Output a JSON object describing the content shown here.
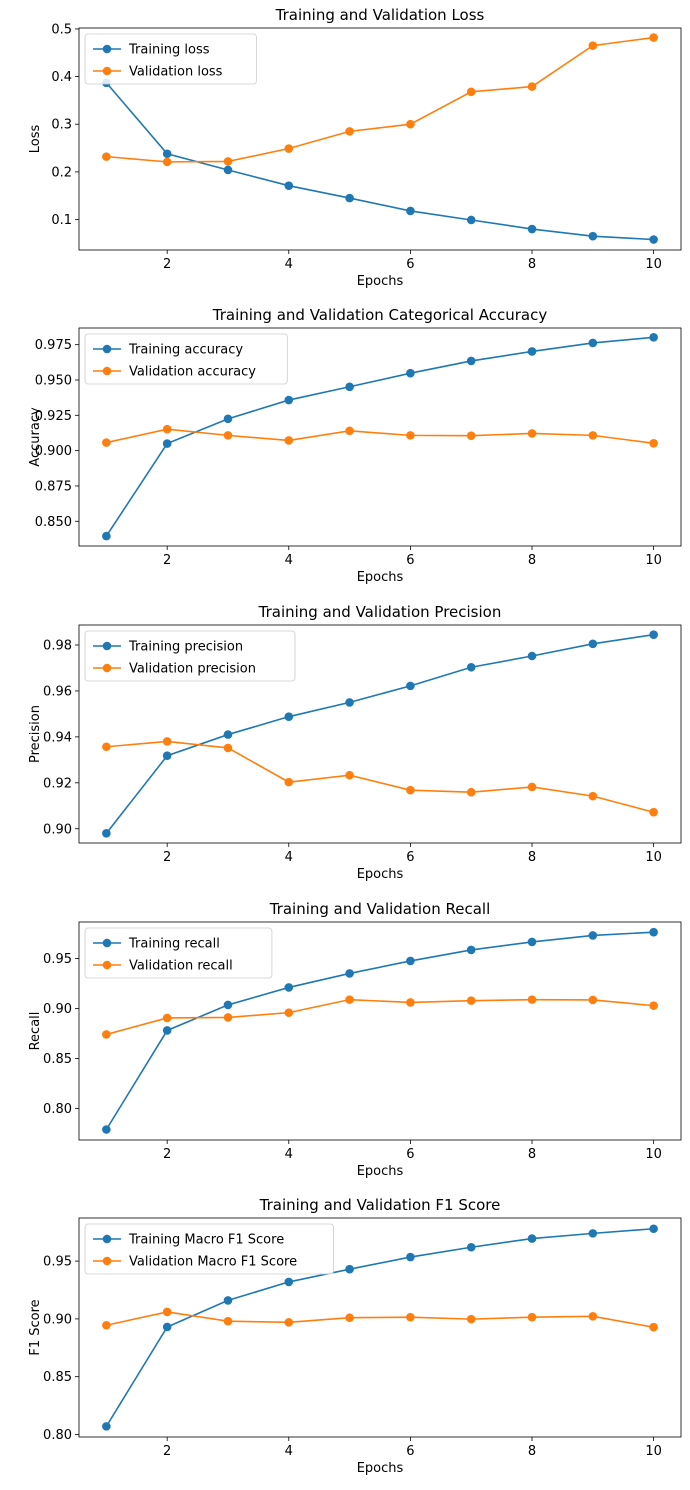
{
  "chart_data": [
    {
      "type": "line",
      "title": "Training and Validation Loss",
      "xlabel": "Epochs",
      "ylabel": "Loss",
      "xlim": [
        0.55,
        10.45
      ],
      "ylim": [
        0.036,
        0.502
      ],
      "xticks": [
        2,
        4,
        6,
        8,
        10
      ],
      "yticks": [
        0.1,
        0.2,
        0.3,
        0.4,
        0.5
      ],
      "ytick_labels": [
        "0.1",
        "0.2",
        "0.3",
        "0.4",
        "0.5"
      ],
      "x": [
        1,
        2,
        3,
        4,
        5,
        6,
        7,
        8,
        9,
        10
      ],
      "legend": "top-left",
      "grid": false,
      "series": [
        {
          "name": "Training loss",
          "color": "#1f77b4",
          "values": [
            0.387,
            0.238,
            0.204,
            0.171,
            0.145,
            0.118,
            0.099,
            0.08,
            0.065,
            0.058
          ]
        },
        {
          "name": "Validation loss",
          "color": "#ff7f0e",
          "values": [
            0.232,
            0.221,
            0.222,
            0.249,
            0.285,
            0.3,
            0.368,
            0.379,
            0.465,
            0.482
          ]
        }
      ]
    },
    {
      "type": "line",
      "title": "Training and Validation Categorical Accuracy",
      "xlabel": "Epochs",
      "ylabel": "Accuracy",
      "xlim": [
        0.55,
        10.45
      ],
      "ylim": [
        0.8325,
        0.9868
      ],
      "xticks": [
        2,
        4,
        6,
        8,
        10
      ],
      "yticks": [
        0.85,
        0.875,
        0.9,
        0.925,
        0.95,
        0.975
      ],
      "ytick_labels": [
        "0.850",
        "0.875",
        "0.900",
        "0.925",
        "0.950",
        "0.975"
      ],
      "x": [
        1,
        2,
        3,
        4,
        5,
        6,
        7,
        8,
        9,
        10
      ],
      "legend": "top-left",
      "grid": false,
      "series": [
        {
          "name": "Training accuracy",
          "color": "#1f77b4",
          "values": [
            0.8395,
            0.905,
            0.9225,
            0.9358,
            0.9452,
            0.9548,
            0.9635,
            0.9702,
            0.9762,
            0.9802
          ]
        },
        {
          "name": "Validation accuracy",
          "color": "#ff7f0e",
          "values": [
            0.9057,
            0.9152,
            0.9108,
            0.9072,
            0.914,
            0.9108,
            0.9106,
            0.9122,
            0.9108,
            0.9052
          ]
        }
      ]
    },
    {
      "type": "line",
      "title": "Training and Validation Precision",
      "xlabel": "Epochs",
      "ylabel": "Precision",
      "xlim": [
        0.55,
        10.45
      ],
      "ylim": [
        0.8938,
        0.9887
      ],
      "xticks": [
        2,
        4,
        6,
        8,
        10
      ],
      "yticks": [
        0.9,
        0.92,
        0.94,
        0.96,
        0.98
      ],
      "ytick_labels": [
        "0.90",
        "0.92",
        "0.94",
        "0.96",
        "0.98"
      ],
      "x": [
        1,
        2,
        3,
        4,
        5,
        6,
        7,
        8,
        9,
        10
      ],
      "legend": "top-left",
      "grid": false,
      "series": [
        {
          "name": "Training precision",
          "color": "#1f77b4",
          "values": [
            0.898,
            0.9318,
            0.941,
            0.9488,
            0.955,
            0.9622,
            0.9703,
            0.9752,
            0.9805,
            0.9845
          ]
        },
        {
          "name": "Validation precision",
          "color": "#ff7f0e",
          "values": [
            0.9357,
            0.938,
            0.9352,
            0.9203,
            0.9233,
            0.9168,
            0.9159,
            0.9182,
            0.9142,
            0.9072
          ]
        }
      ]
    },
    {
      "type": "line",
      "title": "Training and Validation Recall",
      "xlabel": "Epochs",
      "ylabel": "Recall",
      "xlim": [
        0.55,
        10.45
      ],
      "ylim": [
        0.7685,
        0.9864
      ],
      "xticks": [
        2,
        4,
        6,
        8,
        10
      ],
      "yticks": [
        0.8,
        0.85,
        0.9,
        0.95
      ],
      "ytick_labels": [
        "0.80",
        "0.85",
        "0.90",
        "0.95"
      ],
      "x": [
        1,
        2,
        3,
        4,
        5,
        6,
        7,
        8,
        9,
        10
      ],
      "legend": "top-left",
      "grid": false,
      "series": [
        {
          "name": "Training recall",
          "color": "#1f77b4",
          "values": [
            0.779,
            0.878,
            0.9035,
            0.921,
            0.935,
            0.9475,
            0.9585,
            0.9665,
            0.973,
            0.9762
          ]
        },
        {
          "name": "Validation recall",
          "color": "#ff7f0e",
          "values": [
            0.874,
            0.8905,
            0.891,
            0.8958,
            0.9088,
            0.906,
            0.9078,
            0.9088,
            0.9085,
            0.9028
          ]
        }
      ]
    },
    {
      "type": "line",
      "title": "Training and Validation F1 Score",
      "xlabel": "Epochs",
      "ylabel": "F1 Score",
      "xlim": [
        0.55,
        10.45
      ],
      "ylim": [
        0.7978,
        0.9873
      ],
      "xticks": [
        2,
        4,
        6,
        8,
        10
      ],
      "yticks": [
        0.8,
        0.85,
        0.9,
        0.95
      ],
      "ytick_labels": [
        "0.80",
        "0.85",
        "0.90",
        "0.95"
      ],
      "x": [
        1,
        2,
        3,
        4,
        5,
        6,
        7,
        8,
        9,
        10
      ],
      "legend": "top-left",
      "grid": false,
      "series": [
        {
          "name": "Training Macro F1 Score",
          "color": "#1f77b4",
          "values": [
            0.807,
            0.893,
            0.916,
            0.932,
            0.943,
            0.9535,
            0.962,
            0.9695,
            0.974,
            0.978
          ]
        },
        {
          "name": "Validation Macro F1 Score",
          "color": "#ff7f0e",
          "values": [
            0.8945,
            0.906,
            0.898,
            0.897,
            0.901,
            0.9015,
            0.8998,
            0.9015,
            0.9022,
            0.8928
          ]
        }
      ]
    }
  ]
}
